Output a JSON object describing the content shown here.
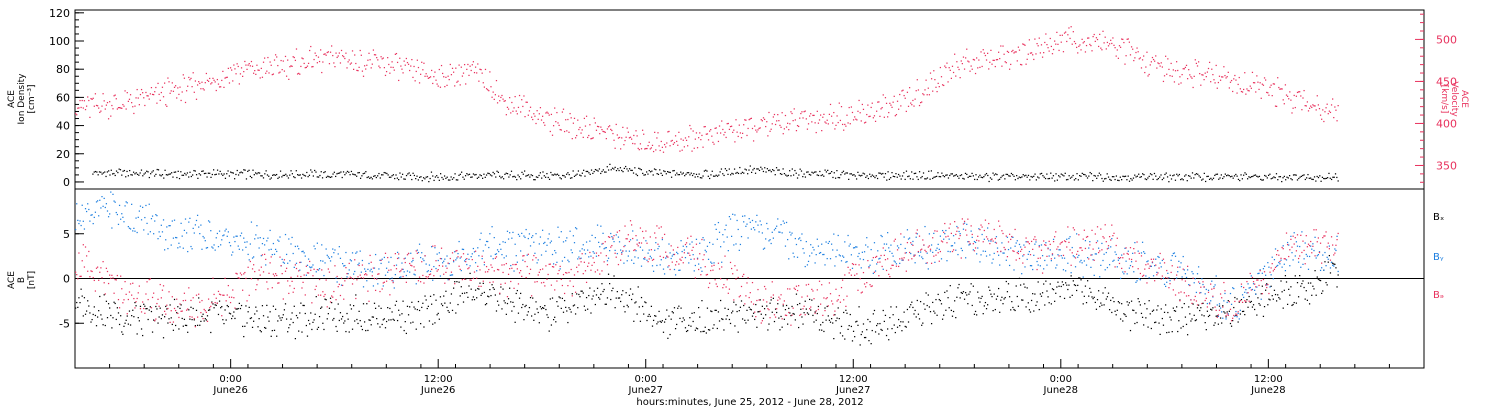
{
  "colors": {
    "background": "#ffffff",
    "axis": "#000000",
    "density": "#000000",
    "velocity": "#e8315d",
    "bx": "#000000",
    "by": "#1d7fe0",
    "bz": "#e8315d"
  },
  "chart_data": [
    {
      "type": "scatter",
      "panel": "plasma",
      "x_start": "2012-06-25 15:00",
      "x_end": "2012-06-28 21:00",
      "ylabel": [
        "ACE",
        "Ion Density",
        "[cm⁻³]"
      ],
      "ylim": [
        -5,
        122
      ],
      "yticks": [
        0,
        20,
        40,
        60,
        80,
        100,
        120
      ],
      "right_ylabel": [
        "ACE",
        "Velocity",
        "[km/s]"
      ],
      "right_ylim": [
        322,
        535
      ],
      "right_yticks": [
        350,
        400,
        450,
        500
      ],
      "series": [
        {
          "name": "Ion Density",
          "axis": "left",
          "x": [
            "2012-06-25 16:00",
            "2012-06-25 20:00",
            "2012-06-26 00:00",
            "2012-06-26 04:00",
            "2012-06-26 08:00",
            "2012-06-26 12:00",
            "2012-06-26 16:00",
            "2012-06-26 20:00",
            "2012-06-26 22:00",
            "2012-06-27 00:00",
            "2012-06-27 04:00",
            "2012-06-27 06:00",
            "2012-06-27 08:00",
            "2012-06-27 12:00",
            "2012-06-27 16:00",
            "2012-06-27 20:00",
            "2012-06-28 00:00",
            "2012-06-28 04:00",
            "2012-06-28 08:00",
            "2012-06-28 12:00",
            "2012-06-28 16:00"
          ],
          "values": [
            7,
            6,
            6,
            6,
            5,
            4,
            5,
            5,
            10,
            7,
            6,
            9,
            7,
            5,
            5,
            4,
            4,
            4,
            4,
            4,
            4
          ]
        },
        {
          "name": "Velocity",
          "axis": "right",
          "x": [
            "2012-06-25 15:00",
            "2012-06-25 18:00",
            "2012-06-25 21:00",
            "2012-06-26 00:00",
            "2012-06-26 03:00",
            "2012-06-26 06:00",
            "2012-06-26 09:00",
            "2012-06-26 12:00",
            "2012-06-26 14:00",
            "2012-06-26 16:00",
            "2012-06-26 19:00",
            "2012-06-26 22:00",
            "2012-06-27 00:00",
            "2012-06-27 03:00",
            "2012-06-27 06:00",
            "2012-06-27 09:00",
            "2012-06-27 12:00",
            "2012-06-27 15:00",
            "2012-06-27 18:00",
            "2012-06-27 21:00",
            "2012-06-28 00:00",
            "2012-06-28 03:00",
            "2012-06-28 06:00",
            "2012-06-28 09:00",
            "2012-06-28 12:00",
            "2012-06-28 15:00",
            "2012-06-28 16:00"
          ],
          "values": [
            420,
            425,
            440,
            460,
            470,
            480,
            470,
            455,
            465,
            425,
            400,
            390,
            375,
            385,
            395,
            405,
            410,
            425,
            470,
            478,
            500,
            495,
            465,
            455,
            440,
            420,
            418
          ]
        }
      ]
    },
    {
      "type": "scatter",
      "panel": "magnetic",
      "x_start": "2012-06-25 15:00",
      "x_end": "2012-06-28 21:00",
      "ylabel": [
        "ACE",
        "B",
        "[nT]"
      ],
      "ylim": [
        -10,
        10
      ],
      "yticks": [
        -5,
        0,
        5
      ],
      "series": [
        {
          "name": "Bₓ",
          "x": [
            "2012-06-25 15:00",
            "2012-06-25 19:00",
            "2012-06-25 23:00",
            "2012-06-26 03:00",
            "2012-06-26 07:00",
            "2012-06-26 11:00",
            "2012-06-26 14:00",
            "2012-06-26 18:00",
            "2012-06-26 22:00",
            "2012-06-27 01:00",
            "2012-06-27 05:00",
            "2012-06-27 09:00",
            "2012-06-27 13:00",
            "2012-06-27 17:00",
            "2012-06-27 21:00",
            "2012-06-28 01:00",
            "2012-06-28 05:00",
            "2012-06-28 09:00",
            "2012-06-28 12:00",
            "2012-06-28 14:00",
            "2012-06-28 16:00"
          ],
          "values": [
            -3,
            -4.5,
            -4,
            -4.5,
            -4,
            -4,
            -1,
            -4,
            -1,
            -5,
            -4,
            -3.5,
            -5.5,
            -3,
            -2,
            -1,
            -4.5,
            -4,
            -2,
            -1,
            1
          ]
        },
        {
          "name": "Bᵧ",
          "x": [
            "2012-06-25 15:00",
            "2012-06-25 17:00",
            "2012-06-25 21:00",
            "2012-06-26 01:00",
            "2012-06-26 05:00",
            "2012-06-26 09:00",
            "2012-06-26 12:00",
            "2012-06-26 15:00",
            "2012-06-26 19:00",
            "2012-06-26 22:00",
            "2012-06-27 02:00",
            "2012-06-27 06:00",
            "2012-06-27 10:00",
            "2012-06-27 14:00",
            "2012-06-27 18:00",
            "2012-06-27 22:00",
            "2012-06-28 02:00",
            "2012-06-28 06:00",
            "2012-06-28 10:00",
            "2012-06-28 13:00",
            "2012-06-28 16:00"
          ],
          "values": [
            7,
            8,
            5,
            4,
            2,
            1,
            2,
            3.5,
            3.5,
            4,
            2,
            6,
            3,
            3,
            4,
            3,
            2.5,
            1.5,
            -3,
            3,
            3
          ]
        },
        {
          "name": "Bₔ",
          "x": [
            "2012-06-25 15:00",
            "2012-06-25 18:00",
            "2012-06-25 22:00",
            "2012-06-26 02:00",
            "2012-06-26 06:00",
            "2012-06-26 10:00",
            "2012-06-26 13:00",
            "2012-06-26 16:00",
            "2012-06-26 20:00",
            "2012-06-26 23:00",
            "2012-06-27 03:00",
            "2012-06-27 07:00",
            "2012-06-27 11:00",
            "2012-06-27 15:00",
            "2012-06-27 19:00",
            "2012-06-27 23:00",
            "2012-06-28 03:00",
            "2012-06-28 07:00",
            "2012-06-28 10:00",
            "2012-06-28 13:00",
            "2012-06-28 16:00"
          ],
          "values": [
            2,
            -2,
            -3,
            1,
            -1,
            1,
            2,
            0.5,
            0.5,
            5,
            2,
            -3,
            -2,
            3,
            5,
            3,
            4,
            -1,
            -3,
            3,
            4
          ]
        }
      ]
    }
  ],
  "x_ticks": [
    {
      "time": "2012-06-26 00:00",
      "l1": "0:00",
      "l2": "June26"
    },
    {
      "time": "2012-06-26 12:00",
      "l1": "12:00",
      "l2": "June26"
    },
    {
      "time": "2012-06-27 00:00",
      "l1": "0:00",
      "l2": "June27"
    },
    {
      "time": "2012-06-27 12:00",
      "l1": "12:00",
      "l2": "June27"
    },
    {
      "time": "2012-06-28 00:00",
      "l1": "0:00",
      "l2": "June28"
    },
    {
      "time": "2012-06-28 12:00",
      "l1": "12:00",
      "l2": "June28"
    }
  ],
  "xlabel": "hours:minutes, June 25, 2012 - June 28, 2012"
}
